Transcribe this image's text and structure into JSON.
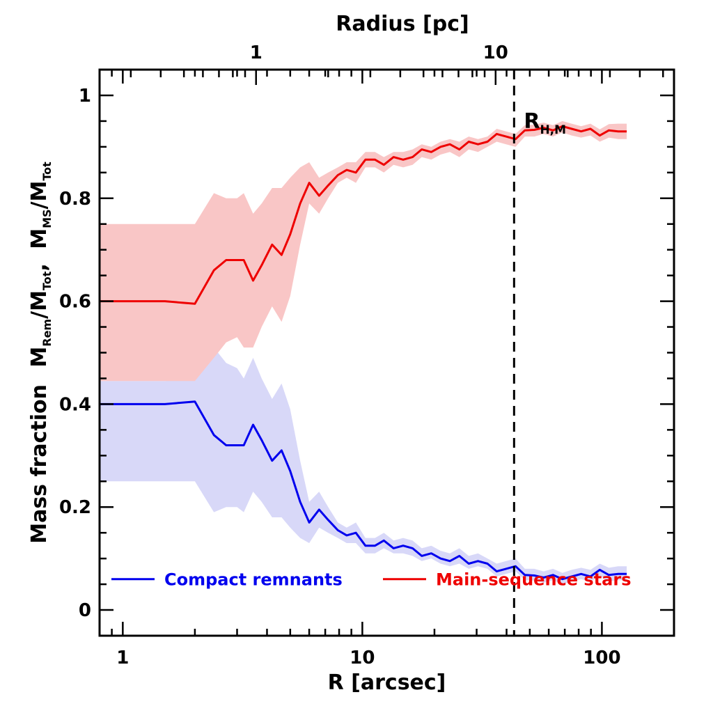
{
  "chart_data": {
    "type": "line",
    "xscale": "log",
    "xlim": [
      0.8,
      200
    ],
    "ylim": [
      -0.05,
      1.05
    ],
    "xlabel": "R [arcsec]",
    "ylabel": "Mass fraction",
    "ylabel_formula": {
      "rem_main": "M",
      "rem_sub": "Rem",
      "rem_den": "/M",
      "rem_den_sub": "Tot",
      "sep": ",",
      "ms_main": "M",
      "ms_sub": "MS",
      "ms_den": "/M",
      "ms_den_sub": "Tot"
    },
    "top_axis": {
      "label": "Radius [pc]",
      "major_ticks": [
        {
          "label": "1",
          "arcsec": 3.6
        },
        {
          "label": "10",
          "arcsec": 36
        }
      ],
      "minor_ticks_arcsec": [
        1.08,
        1.44,
        1.8,
        2.16,
        2.52,
        2.88,
        3.24,
        7.2,
        10.8,
        14.4,
        18,
        21.6,
        25.2,
        28.8,
        32.4,
        72,
        108,
        144,
        180
      ]
    },
    "x_ticks": [
      {
        "label": "1",
        "value": 1
      },
      {
        "label": "10",
        "value": 10
      },
      {
        "label": "100",
        "value": 100
      }
    ],
    "y_ticks": [
      {
        "label": "0",
        "value": 0
      },
      {
        "label": "0.2",
        "value": 0.2
      },
      {
        "label": "0.4",
        "value": 0.4
      },
      {
        "label": "0.6",
        "value": 0.6
      },
      {
        "label": "0.8",
        "value": 0.8
      },
      {
        "label": "1",
        "value": 1
      }
    ],
    "annotation": {
      "main": "R",
      "sub": "H,M",
      "x": 43,
      "y": 0.95
    },
    "vline": {
      "x": 43,
      "style": "dashed"
    },
    "x": [
      0.8,
      1.0,
      1.5,
      2.0,
      2.4,
      2.7,
      3.0,
      3.2,
      3.5,
      3.8,
      4.2,
      4.6,
      5.0,
      5.5,
      6.0,
      6.6,
      7.2,
      7.9,
      8.6,
      9.4,
      10.3,
      11.3,
      12.3,
      13.5,
      14.8,
      16.2,
      17.7,
      19.4,
      21.2,
      23.2,
      25.4,
      27.8,
      30.4,
      33.3,
      36.4,
      39.8,
      43.6,
      47.7,
      52.2,
      57.1,
      62.5,
      68.4,
      74.8,
      81.9,
      89.6,
      98.0,
      107,
      117,
      127
    ],
    "series": [
      {
        "name": "Compact remnants",
        "color": "#0000ee",
        "band_color": "#d8d8f8",
        "values": [
          0.4,
          0.4,
          0.4,
          0.405,
          0.34,
          0.32,
          0.32,
          0.32,
          0.36,
          0.33,
          0.29,
          0.31,
          0.27,
          0.21,
          0.17,
          0.195,
          0.175,
          0.155,
          0.145,
          0.15,
          0.125,
          0.125,
          0.135,
          0.12,
          0.125,
          0.12,
          0.105,
          0.11,
          0.1,
          0.095,
          0.105,
          0.09,
          0.095,
          0.09,
          0.075,
          0.08,
          0.085,
          0.068,
          0.067,
          0.063,
          0.068,
          0.06,
          0.065,
          0.07,
          0.065,
          0.078,
          0.068,
          0.07,
          0.07
        ],
        "lower": [
          0.25,
          0.25,
          0.25,
          0.25,
          0.19,
          0.2,
          0.2,
          0.19,
          0.23,
          0.21,
          0.18,
          0.18,
          0.16,
          0.14,
          0.13,
          0.16,
          0.15,
          0.14,
          0.13,
          0.13,
          0.11,
          0.11,
          0.12,
          0.11,
          0.11,
          0.105,
          0.095,
          0.1,
          0.09,
          0.085,
          0.09,
          0.08,
          0.085,
          0.08,
          0.065,
          0.07,
          0.075,
          0.058,
          0.057,
          0.053,
          0.058,
          0.05,
          0.055,
          0.06,
          0.055,
          0.066,
          0.056,
          0.058,
          0.058
        ],
        "upper": [
          0.445,
          0.445,
          0.445,
          0.45,
          0.51,
          0.48,
          0.47,
          0.45,
          0.49,
          0.45,
          0.41,
          0.44,
          0.39,
          0.29,
          0.21,
          0.23,
          0.2,
          0.17,
          0.16,
          0.17,
          0.14,
          0.14,
          0.15,
          0.135,
          0.14,
          0.135,
          0.12,
          0.125,
          0.115,
          0.11,
          0.12,
          0.105,
          0.11,
          0.1,
          0.09,
          0.095,
          0.1,
          0.08,
          0.08,
          0.075,
          0.08,
          0.072,
          0.078,
          0.082,
          0.078,
          0.09,
          0.082,
          0.085,
          0.085
        ]
      },
      {
        "name": "Main-sequence stars",
        "color": "#ee0000",
        "band_color": "#f9c6c6",
        "values": [
          0.6,
          0.6,
          0.6,
          0.595,
          0.66,
          0.68,
          0.68,
          0.68,
          0.64,
          0.67,
          0.71,
          0.69,
          0.73,
          0.79,
          0.83,
          0.805,
          0.825,
          0.845,
          0.855,
          0.85,
          0.875,
          0.875,
          0.865,
          0.88,
          0.875,
          0.88,
          0.895,
          0.89,
          0.9,
          0.905,
          0.895,
          0.91,
          0.905,
          0.91,
          0.925,
          0.92,
          0.915,
          0.932,
          0.933,
          0.937,
          0.932,
          0.94,
          0.935,
          0.93,
          0.935,
          0.922,
          0.932,
          0.93,
          0.93
        ],
        "lower": [
          0.445,
          0.445,
          0.445,
          0.445,
          0.49,
          0.52,
          0.53,
          0.51,
          0.51,
          0.55,
          0.59,
          0.56,
          0.61,
          0.71,
          0.79,
          0.77,
          0.8,
          0.83,
          0.84,
          0.83,
          0.86,
          0.86,
          0.85,
          0.865,
          0.86,
          0.865,
          0.88,
          0.875,
          0.885,
          0.89,
          0.88,
          0.895,
          0.89,
          0.9,
          0.91,
          0.905,
          0.9,
          0.92,
          0.92,
          0.925,
          0.92,
          0.928,
          0.922,
          0.918,
          0.922,
          0.91,
          0.918,
          0.915,
          0.915
        ],
        "upper": [
          0.75,
          0.75,
          0.75,
          0.75,
          0.81,
          0.8,
          0.8,
          0.81,
          0.77,
          0.79,
          0.82,
          0.82,
          0.84,
          0.86,
          0.87,
          0.84,
          0.85,
          0.86,
          0.87,
          0.87,
          0.89,
          0.89,
          0.88,
          0.89,
          0.89,
          0.895,
          0.905,
          0.9,
          0.91,
          0.915,
          0.91,
          0.92,
          0.915,
          0.92,
          0.935,
          0.93,
          0.925,
          0.942,
          0.943,
          0.947,
          0.942,
          0.95,
          0.945,
          0.94,
          0.945,
          0.934,
          0.944,
          0.945,
          0.945
        ]
      }
    ]
  }
}
